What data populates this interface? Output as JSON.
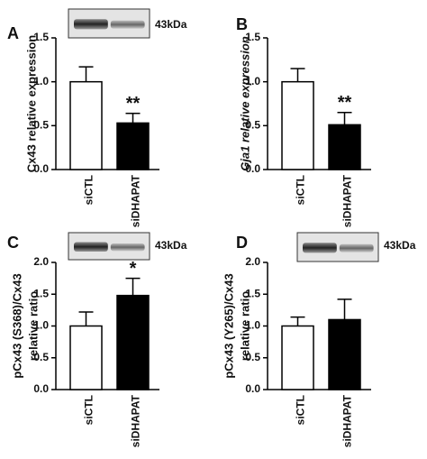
{
  "chart_data": [
    {
      "type": "bar",
      "panel": "A",
      "ylabel": [
        "Cx43 relative expression"
      ],
      "blot_label": "43kDa",
      "categories": [
        "siCTL",
        "siDHAPAT"
      ],
      "values": [
        1.0,
        0.53
      ],
      "errors": [
        0.17,
        0.11
      ],
      "colors": [
        "#ffffff",
        "#000000"
      ],
      "value_annotations": [
        null,
        "**"
      ],
      "ylim": [
        0,
        1.5
      ],
      "yticks": [
        {
          "value": 0,
          "label": "0.0"
        },
        {
          "value": 0.5,
          "label": "0.5"
        },
        {
          "value": 1,
          "label": "1.0"
        },
        {
          "value": 1.5,
          "label": "1.5"
        }
      ]
    },
    {
      "type": "bar",
      "panel": "B",
      "ylabel": [
        "Gja1 relative expression"
      ],
      "categories": [
        "siCTL",
        "siDHAPAT"
      ],
      "values": [
        1.0,
        0.51
      ],
      "errors": [
        0.15,
        0.14
      ],
      "colors": [
        "#ffffff",
        "#000000"
      ],
      "value_annotations": [
        null,
        "**"
      ],
      "ylim": [
        0,
        1.5
      ],
      "yticks": [
        {
          "value": 0,
          "label": "0.0"
        },
        {
          "value": 0.5,
          "label": "0.5"
        },
        {
          "value": 1,
          "label": "1.0"
        },
        {
          "value": 1.5,
          "label": "1.5"
        }
      ]
    },
    {
      "type": "bar",
      "panel": "C",
      "ylabel": [
        "pCx43 (S368)/Cx43",
        "relative ratio"
      ],
      "blot_label": "43kDa",
      "categories": [
        "siCTL",
        "siDHAPAT"
      ],
      "values": [
        1.0,
        1.48
      ],
      "errors": [
        0.22,
        0.27
      ],
      "colors": [
        "#ffffff",
        "#000000"
      ],
      "value_annotations": [
        null,
        "*"
      ],
      "ylim": [
        0,
        2
      ],
      "yticks": [
        {
          "value": 0,
          "label": "0.0"
        },
        {
          "value": 0.5,
          "label": "0.5"
        },
        {
          "value": 1,
          "label": "1.0"
        },
        {
          "value": 1.5,
          "label": "1.5"
        },
        {
          "value": 2,
          "label": "2.0"
        }
      ]
    },
    {
      "type": "bar",
      "panel": "D",
      "ylabel": [
        "pCx43 (Y265)/Cx43",
        "relative ratio"
      ],
      "blot_label": "43kDa",
      "categories": [
        "siCTL",
        "siDHAPAT"
      ],
      "values": [
        1.0,
        1.1
      ],
      "errors": [
        0.14,
        0.32
      ],
      "colors": [
        "#ffffff",
        "#000000"
      ],
      "value_annotations": [
        null,
        null
      ],
      "ylim": [
        0,
        2
      ],
      "yticks": [
        {
          "value": 0,
          "label": "0.0"
        },
        {
          "value": 0.5,
          "label": "0.5"
        },
        {
          "value": 1,
          "label": "1.0"
        },
        {
          "value": 1.5,
          "label": "1.5"
        },
        {
          "value": 2,
          "label": "2.0"
        }
      ]
    }
  ]
}
